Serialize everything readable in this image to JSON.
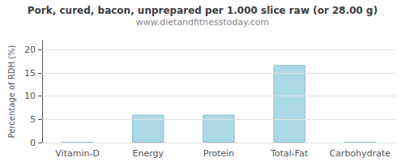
{
  "chart_data": {
    "type": "bar",
    "title": "Pork, cured, bacon, unprepared per 1.000 slice raw (or 28.00 g)",
    "subtitle": "www.dietandfitnesstoday.com",
    "categories": [
      "Vitamin-D",
      "Energy",
      "Protein",
      "Total-Fat",
      "Carbohydrate"
    ],
    "values": [
      0,
      6.0,
      6.0,
      16.7,
      0.1
    ],
    "color": "#ADD8E6",
    "ylabel": "Percentage of RDH (%)",
    "ylim": [
      0,
      22
    ],
    "yticks": [
      0,
      5,
      10,
      15,
      20
    ],
    "grid": true
  }
}
